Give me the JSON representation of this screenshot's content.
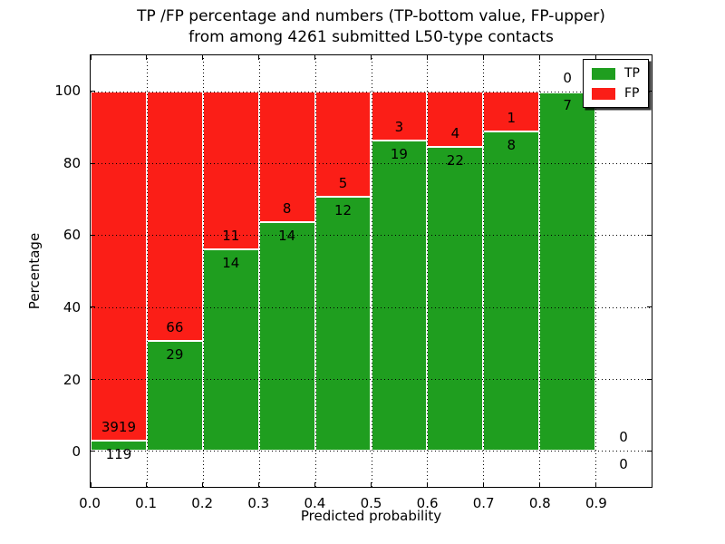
{
  "figure": {
    "title_line1": "TP /FP percentage and numbers (TP-bottom value, FP-upper)",
    "title_line2": "from among 4261 submitted L50-type contacts"
  },
  "chart_data": {
    "type": "bar",
    "variant": "stacked-percentage",
    "title": "TP /FP percentage and numbers (TP-bottom value, FP-upper) from among 4261 submitted L50-type contacts",
    "total_contacts": 4261,
    "xlabel": "Predicted probability",
    "ylabel": "Percentage",
    "xlim": [
      0.0,
      1.0
    ],
    "ylim": [
      -10,
      110
    ],
    "x_tick_labels": [
      "0.0",
      "0.1",
      "0.2",
      "0.3",
      "0.4",
      "0.5",
      "0.6",
      "0.7",
      "0.8",
      "0.9"
    ],
    "y_ticks": [
      0,
      20,
      40,
      60,
      80,
      100
    ],
    "grid": "dotted-black-both-axes",
    "legend": {
      "position": "upper right",
      "entries": [
        {
          "label": "TP",
          "color": "#1f9e1f"
        },
        {
          "label": "FP",
          "color": "#fb1e17"
        }
      ]
    },
    "categories": [
      "0.0-0.1",
      "0.1-0.2",
      "0.2-0.3",
      "0.3-0.4",
      "0.4-0.5",
      "0.5-0.6",
      "0.6-0.7",
      "0.7-0.8",
      "0.8-0.9",
      "0.9-1.0"
    ],
    "bins": [
      {
        "x_range": [
          0.0,
          0.1
        ],
        "tp": 119,
        "fp": 3919,
        "tp_pct": 2.9
      },
      {
        "x_range": [
          0.1,
          0.2
        ],
        "tp": 29,
        "fp": 66,
        "tp_pct": 30.5
      },
      {
        "x_range": [
          0.2,
          0.3
        ],
        "tp": 14,
        "fp": 11,
        "tp_pct": 56.0
      },
      {
        "x_range": [
          0.3,
          0.4
        ],
        "tp": 14,
        "fp": 8,
        "tp_pct": 63.6
      },
      {
        "x_range": [
          0.4,
          0.5
        ],
        "tp": 12,
        "fp": 5,
        "tp_pct": 70.6
      },
      {
        "x_range": [
          0.5,
          0.6
        ],
        "tp": 19,
        "fp": 3,
        "tp_pct": 86.4
      },
      {
        "x_range": [
          0.6,
          0.7
        ],
        "tp": 22,
        "fp": 4,
        "tp_pct": 84.6
      },
      {
        "x_range": [
          0.7,
          0.8
        ],
        "tp": 8,
        "fp": 1,
        "tp_pct": 88.9
      },
      {
        "x_range": [
          0.8,
          0.9
        ],
        "tp": 7,
        "fp": 0,
        "tp_pct": 100.0
      },
      {
        "x_range": [
          0.9,
          1.0
        ],
        "tp": 0,
        "fp": 0,
        "tp_pct": null
      }
    ],
    "annotation_note": "TP count printed just below each green/red boundary, FP count just above it"
  }
}
